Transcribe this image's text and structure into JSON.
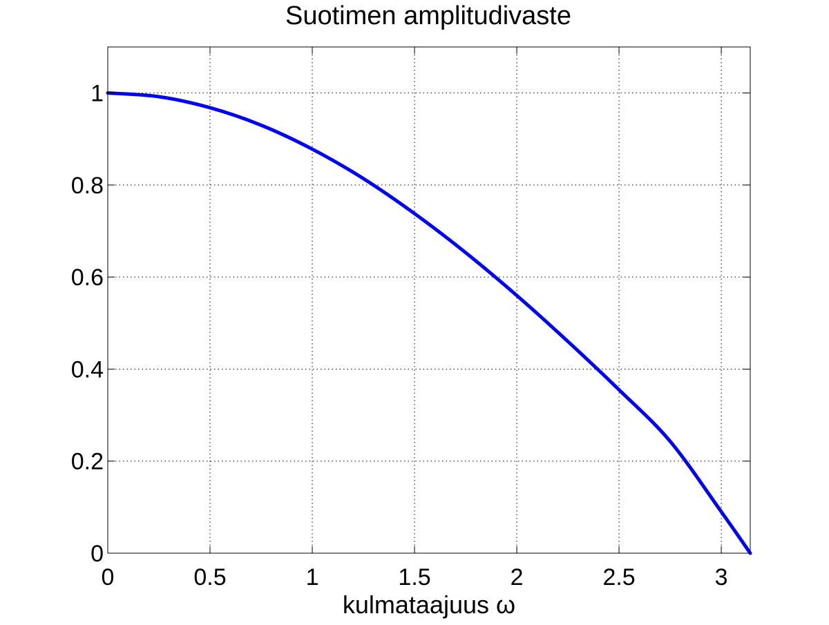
{
  "chart_data": {
    "type": "line",
    "title": "Suotimen amplitudivaste",
    "xlabel": "kulmataajuus ω",
    "ylabel": "",
    "xlim": [
      0,
      3.14159
    ],
    "ylim": [
      0,
      1.1
    ],
    "xticks": [
      0,
      0.5,
      1,
      1.5,
      2,
      2.5,
      3
    ],
    "xtick_labels": [
      "0",
      "0.5",
      "1",
      "1.5",
      "2",
      "2.5",
      "3"
    ],
    "yticks": [
      0,
      0.2,
      0.4,
      0.6,
      0.8,
      1
    ],
    "ytick_labels": [
      "0",
      "0.2",
      "0.4",
      "0.6",
      "0.8",
      "1"
    ],
    "grid": true,
    "series": [
      {
        "color": "#0000ff",
        "x": [
          0,
          0.25,
          0.5,
          0.75,
          1.0,
          1.25,
          1.5,
          1.75,
          2.0,
          2.25,
          2.5,
          2.75,
          3.0,
          3.1416
        ],
        "y": [
          1.0,
          0.992,
          0.968,
          0.93,
          0.878,
          0.814,
          0.738,
          0.653,
          0.56,
          0.46,
          0.355,
          0.243,
          0.09,
          0.0
        ]
      }
    ]
  }
}
